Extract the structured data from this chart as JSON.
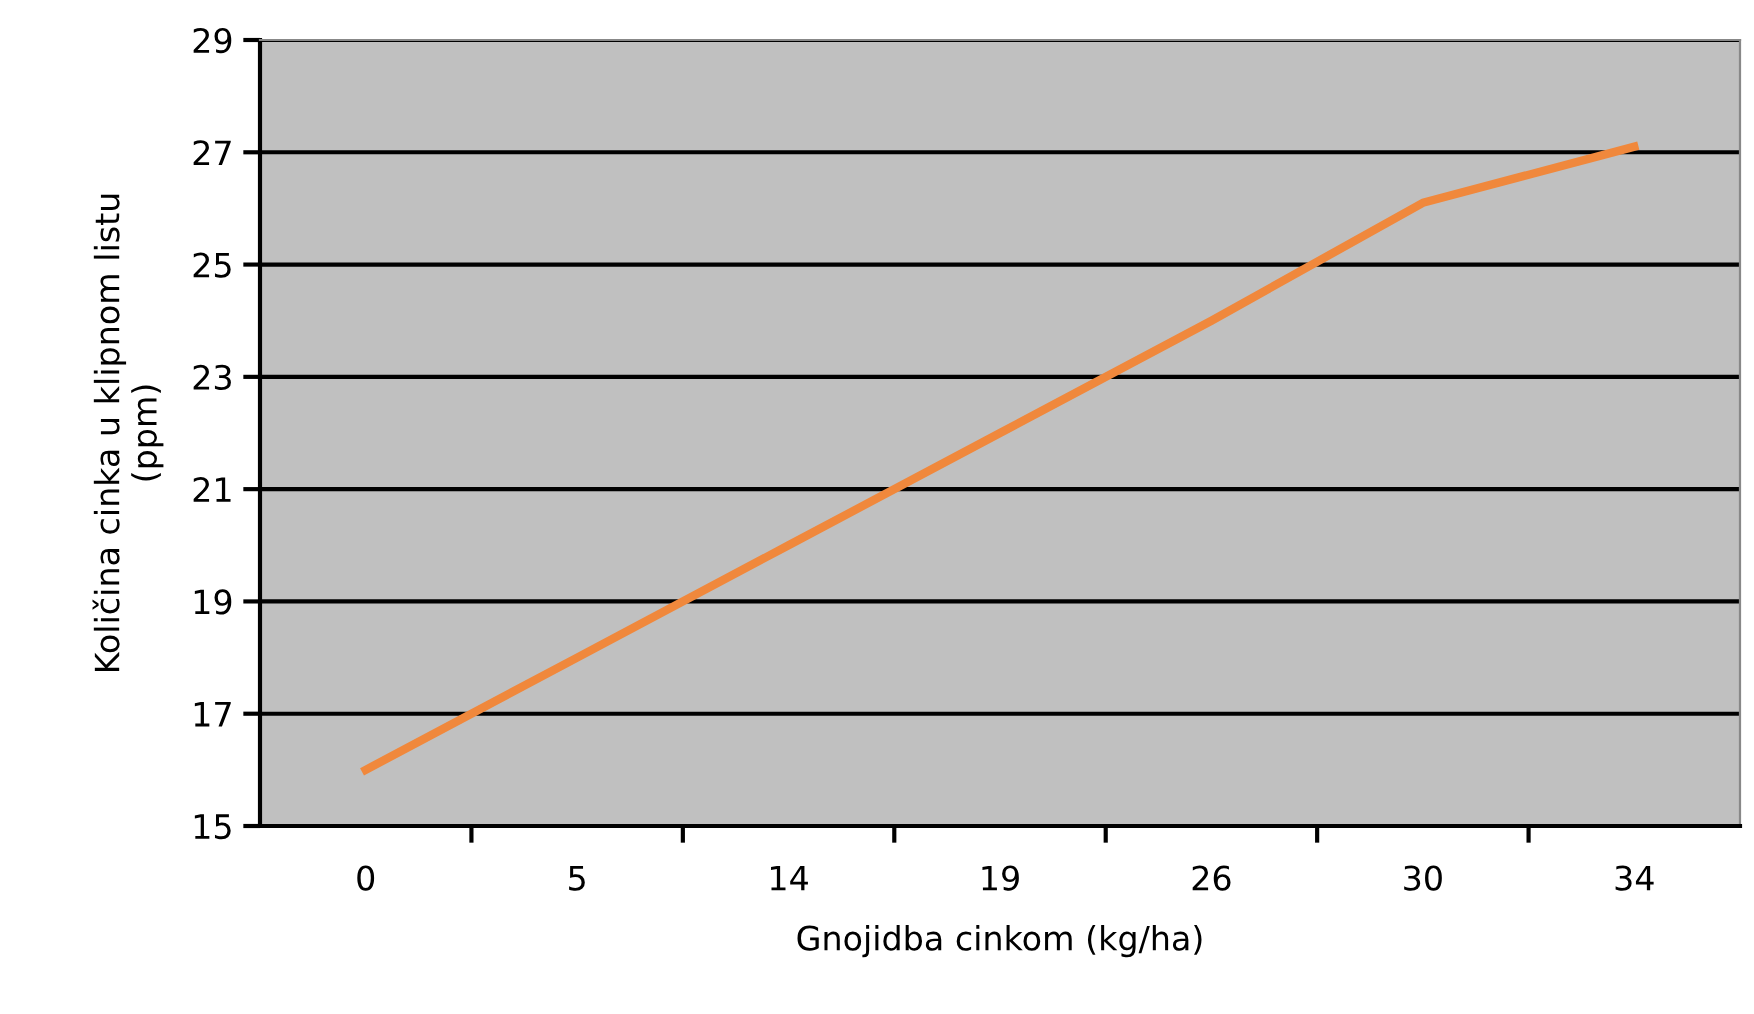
{
  "chart_data": {
    "type": "line",
    "xlabel": "Gnojidba cinkom (kg/ha)",
    "ylabel": "Količina cinka u klipnom listu\n(ppm)",
    "categories": [
      "0",
      "5",
      "14",
      "19",
      "26",
      "30",
      "34"
    ],
    "series": [
      {
        "color": "#f0883c",
        "values": [
          16,
          18,
          20,
          22,
          24,
          26.1,
          27.1
        ]
      }
    ],
    "ylim": [
      15,
      29
    ],
    "yticks": [
      15,
      17,
      19,
      21,
      23,
      25,
      27,
      29
    ],
    "grid": "y",
    "marker": "none",
    "line_style": "solid"
  }
}
